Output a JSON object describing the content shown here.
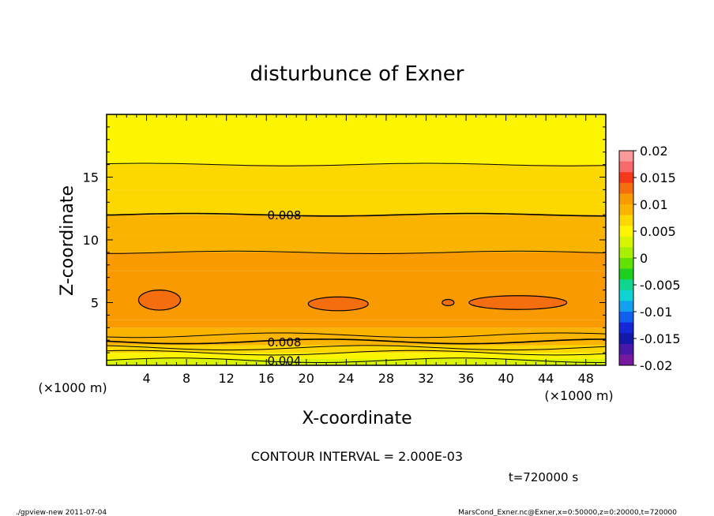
{
  "chart_data": {
    "type": "heatmap",
    "title": "disturbunce of Exner",
    "xlabel": "X-coordinate",
    "ylabel": "Z-coordinate",
    "x_unit": "(×1000 m)",
    "z_unit": "(×1000 m)",
    "xlim": [
      0,
      50
    ],
    "ylim": [
      0,
      20
    ],
    "x_ticks": [
      "4",
      "8",
      "12",
      "16",
      "20",
      "24",
      "28",
      "32",
      "36",
      "40",
      "44",
      "48"
    ],
    "y_ticks": [
      "5",
      "10",
      "15"
    ],
    "colorbar": {
      "range": [
        -0.02,
        0.02
      ],
      "labels": [
        "0.02",
        "0.015",
        "0.01",
        "0.005",
        "0",
        "-0.005",
        "-0.01",
        "-0.015",
        "-0.02"
      ],
      "colors": [
        "#fa9a9a",
        "#f86a6a",
        "#f43a1a",
        "#f46e10",
        "#f89a00",
        "#fab400",
        "#fcd800",
        "#fcf400",
        "#d8f400",
        "#a8f000",
        "#62e000",
        "#1ed01e",
        "#10d490",
        "#10d4d4",
        "#14a0f0",
        "#1060f0",
        "#1428d8",
        "#1418a8",
        "#4818a8",
        "#7818a0"
      ]
    },
    "contour_interval": "CONTOUR INTERVAL = 2.000E-03",
    "contour_labels": [
      "0.008",
      "0.008",
      "0.004"
    ],
    "bands": [
      {
        "z_range": [
          0.0,
          0.5
        ],
        "value": 0.0035
      },
      {
        "z_range": [
          0.5,
          1.0
        ],
        "value": 0.005
      },
      {
        "z_range": [
          1.0,
          1.6
        ],
        "value": 0.007
      },
      {
        "z_range": [
          1.6,
          2.3
        ],
        "value": 0.0085
      },
      {
        "z_range": [
          2.3,
          3.0
        ],
        "value": 0.0095
      },
      {
        "z_range": [
          3.0,
          3.6
        ],
        "value": 0.0105
      },
      {
        "z_range": [
          3.6,
          7.5
        ],
        "value": 0.0115
      },
      {
        "z_range": [
          7.5,
          9.0
        ],
        "value": 0.0105
      },
      {
        "z_range": [
          9.0,
          10.5
        ],
        "value": 0.0095
      },
      {
        "z_range": [
          10.5,
          12.0
        ],
        "value": 0.0085
      },
      {
        "z_range": [
          12.0,
          14.0
        ],
        "value": 0.0075
      },
      {
        "z_range": [
          14.0,
          16.0
        ],
        "value": 0.0065
      },
      {
        "z_range": [
          16.0,
          17.8
        ],
        "value": 0.0055
      },
      {
        "z_range": [
          17.8,
          20.0
        ],
        "value": 0.0045
      }
    ],
    "contour_levels_z": [
      0.4,
      1.0,
      1.4,
      1.9,
      2.4,
      9.0,
      12.0,
      16.0
    ],
    "high_cells": [
      {
        "x": 5.3,
        "z": 5.2
      },
      {
        "x": 23.2,
        "z": 4.9
      },
      {
        "x": 34.2,
        "z": 5.0
      },
      {
        "x": 41.2,
        "z": 5.0
      }
    ]
  },
  "footer": {
    "time": "t=720000 s",
    "program": "./gpview-new   2011-07-04",
    "source": "MarsCond_Exner.nc@Exner,x=0:50000,z=0:20000,t=720000"
  }
}
